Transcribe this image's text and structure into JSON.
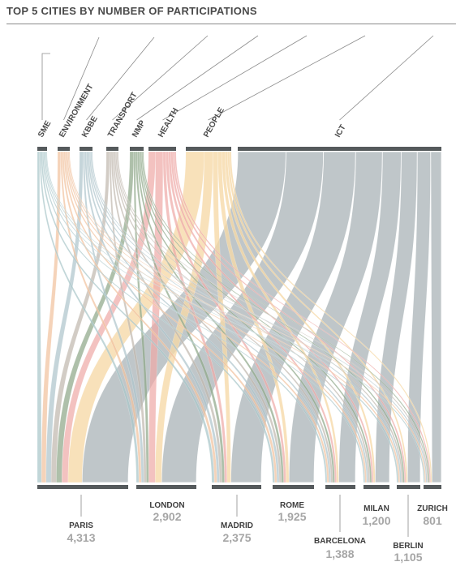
{
  "title": "TOP 5 CITIES BY NUMBER OF PARTICIPATIONS",
  "chart_data": {
    "type": "sankey",
    "themes": [
      {
        "label": "SME",
        "color": "#a9c6c9"
      },
      {
        "label": "ENVIRONMENT",
        "color": "#f1c29e"
      },
      {
        "label": "KBBE",
        "color": "#afc5cc"
      },
      {
        "label": "TRANSPORT",
        "color": "#c1b8ae"
      },
      {
        "label": "NMP",
        "color": "#8fa889"
      },
      {
        "label": "HEALTH",
        "color": "#eeaaa8"
      },
      {
        "label": "PEOPLE",
        "color": "#f6d9a6"
      },
      {
        "label": "ICT",
        "color": "#bcc3c6"
      }
    ],
    "cities": [
      {
        "name": "PARIS",
        "count": "4,313",
        "value": 4313
      },
      {
        "name": "LONDON",
        "count": "2,902",
        "value": 2902
      },
      {
        "name": "MADRID",
        "count": "2,375",
        "value": 2375
      },
      {
        "name": "ROME",
        "count": "1,925",
        "value": 1925
      },
      {
        "name": "BARCELONA",
        "count": "1,388",
        "value": 1388
      },
      {
        "name": "MILAN",
        "count": "1,200",
        "value": 1200
      },
      {
        "name": "BERLIN",
        "count": "1,105",
        "value": 1105
      },
      {
        "name": "ZURICH",
        "count": "801",
        "value": 801
      }
    ]
  }
}
